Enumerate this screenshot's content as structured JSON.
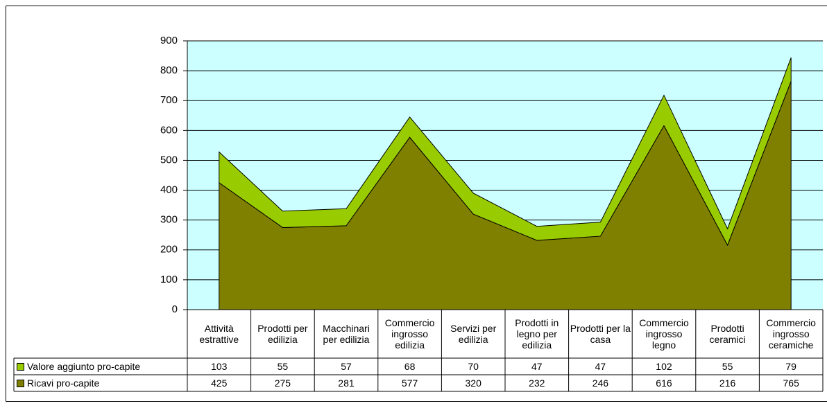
{
  "chart_data": {
    "type": "stacked_area",
    "categories": [
      "Attività estrattive",
      "Prodotti per edilizia",
      "Macchinari per edilizia",
      "Commercio ingrosso edilizia",
      "Servizi per edilizia",
      "Prodotti in legno per edilizia",
      "Prodotti per la casa",
      "Commercio ingrosso legno",
      "Prodotti ceramici",
      "Commercio ingrosso ceramiche"
    ],
    "series": [
      {
        "name": "Valore aggiunto pro-capite",
        "color": "#99cc00",
        "values": [
          103,
          55,
          57,
          68,
          70,
          47,
          47,
          102,
          55,
          79
        ]
      },
      {
        "name": "Ricavi pro-capite",
        "color": "#808000",
        "values": [
          425,
          275,
          281,
          577,
          320,
          232,
          246,
          616,
          216,
          765
        ]
      }
    ],
    "ylim": [
      0,
      900
    ],
    "yticks": [
      0,
      100,
      200,
      300,
      400,
      500,
      600,
      700,
      800,
      900
    ],
    "grid": true,
    "plot_background": "#ccffff",
    "data_table": true
  }
}
